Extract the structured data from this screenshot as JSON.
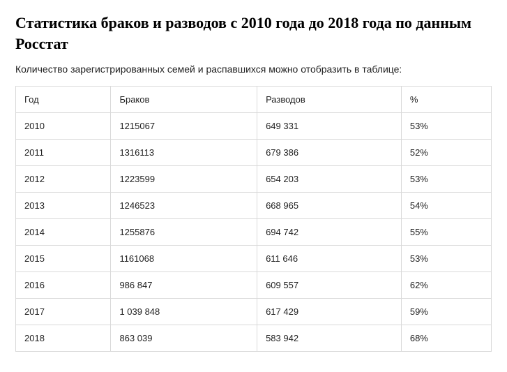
{
  "title": "Статистика браков и разводов с 2010 года до 2018 года по данным Росстат",
  "subtitle": "Количество зарегистрированных семей и распавшихся можно отобразить в таблице:",
  "table": {
    "columns": [
      "Год",
      "Браков",
      "Разводов",
      "%"
    ],
    "rows": [
      [
        "2010",
        "1215067",
        "649 331",
        "53%"
      ],
      [
        "2011",
        "1316113",
        "679 386",
        "52%"
      ],
      [
        "2012",
        "1223599",
        "654 203",
        "53%"
      ],
      [
        "2013",
        "1246523",
        "668 965",
        "54%"
      ],
      [
        "2014",
        "1255876",
        "694 742",
        "55%"
      ],
      [
        "2015",
        "1161068",
        "611 646",
        "53%"
      ],
      [
        "2016",
        "986 847",
        "609 557",
        "62%"
      ],
      [
        "2017",
        "1 039 848",
        "617 429",
        "59%"
      ],
      [
        "2018",
        "863 039",
        "583 942",
        "68%"
      ]
    ],
    "border_color": "#d9d9d9",
    "background_color": "#ffffff",
    "text_color": "#222222",
    "font_size": 13,
    "cell_padding": "11px 12px",
    "column_widths": [
      "24%",
      "25%",
      "25%",
      "26%"
    ]
  }
}
